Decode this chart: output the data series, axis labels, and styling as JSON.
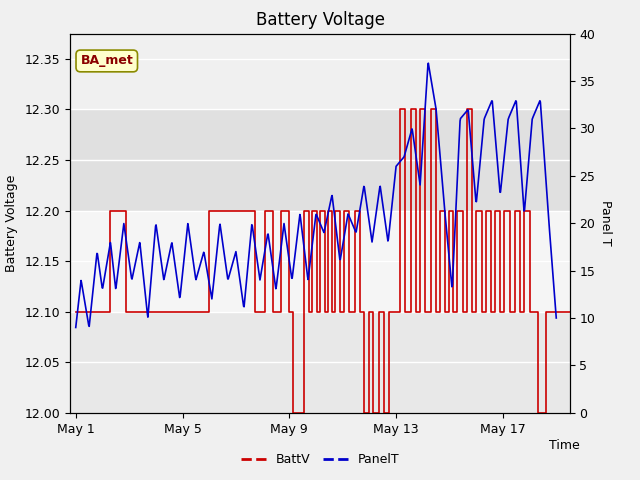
{
  "title": "Battery Voltage",
  "xlabel": "Time",
  "ylabel_left": "Battery Voltage",
  "ylabel_right": "Panel T",
  "annotation_text": "BA_met",
  "annotation_bg": "#ffffcc",
  "annotation_border": "#8B0000",
  "ylim_left": [
    12.0,
    12.375
  ],
  "ylim_right": [
    0,
    40
  ],
  "yticks_left": [
    12.0,
    12.05,
    12.1,
    12.15,
    12.2,
    12.25,
    12.3,
    12.35
  ],
  "yticks_right": [
    0,
    5,
    10,
    15,
    20,
    25,
    30,
    35,
    40
  ],
  "band_light": "#ebebeb",
  "band_dark": "#d8d8d8",
  "batt_color": "#cc0000",
  "panel_color": "#0000cc",
  "x_tick_labels": [
    "May 1",
    "May 5",
    "May 9",
    "May 13",
    "May 17"
  ],
  "x_tick_positions": [
    0,
    4,
    8,
    12,
    16
  ],
  "xlim": [
    -0.2,
    18.5
  ],
  "figsize": [
    6.4,
    4.8
  ],
  "dpi": 100
}
